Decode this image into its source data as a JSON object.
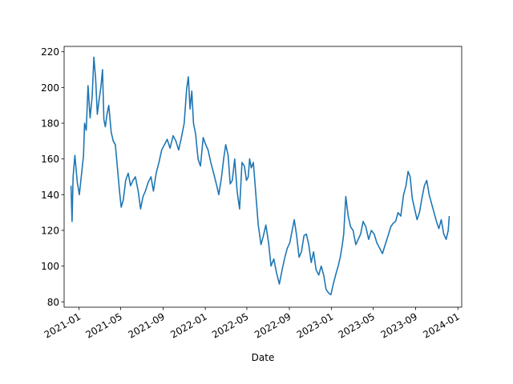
{
  "chart_data": {
    "type": "line",
    "title": "",
    "xlabel": "Date",
    "ylabel": "",
    "xlim": [
      "2020-11-19",
      "2024-01-12"
    ],
    "ylim": [
      77,
      223
    ],
    "grid": false,
    "legend": "none",
    "x_ticks": [
      "2021-01",
      "2021-05",
      "2021-09",
      "2022-01",
      "2022-05",
      "2022-09",
      "2023-01",
      "2023-05",
      "2023-09",
      "2024-01"
    ],
    "y_ticks": [
      80,
      100,
      120,
      140,
      160,
      180,
      200,
      220
    ],
    "series": [
      {
        "color": "#1f77b4",
        "x": [
          "2020-12-09",
          "2020-12-12",
          "2020-12-15",
          "2020-12-20",
          "2020-12-27",
          "2021-01-02",
          "2021-01-08",
          "2021-01-14",
          "2021-01-17",
          "2021-01-22",
          "2021-01-27",
          "2021-02-02",
          "2021-02-08",
          "2021-02-13",
          "2021-02-18",
          "2021-02-23",
          "2021-02-28",
          "2021-03-05",
          "2021-03-10",
          "2021-03-14",
          "2021-03-18",
          "2021-03-23",
          "2021-03-28",
          "2021-04-04",
          "2021-04-10",
          "2021-04-16",
          "2021-04-22",
          "2021-04-28",
          "2021-05-03",
          "2021-05-09",
          "2021-05-16",
          "2021-05-23",
          "2021-05-30",
          "2021-06-06",
          "2021-06-13",
          "2021-06-21",
          "2021-06-28",
          "2021-07-05",
          "2021-07-12",
          "2021-07-20",
          "2021-07-28",
          "2021-08-04",
          "2021-08-12",
          "2021-08-20",
          "2021-08-28",
          "2021-09-05",
          "2021-09-13",
          "2021-09-21",
          "2021-09-30",
          "2021-10-08",
          "2021-10-16",
          "2021-10-24",
          "2021-11-01",
          "2021-11-08",
          "2021-11-13",
          "2021-11-18",
          "2021-11-23",
          "2021-11-28",
          "2021-12-04",
          "2021-12-11",
          "2021-12-18",
          "2021-12-26",
          "2022-01-02",
          "2022-01-09",
          "2022-01-17",
          "2022-01-25",
          "2022-02-02",
          "2022-02-09",
          "2022-02-17",
          "2022-02-23",
          "2022-03-01",
          "2022-03-08",
          "2022-03-14",
          "2022-03-20",
          "2022-03-27",
          "2022-04-03",
          "2022-04-10",
          "2022-04-17",
          "2022-04-24",
          "2022-04-30",
          "2022-05-05",
          "2022-05-09",
          "2022-05-14",
          "2022-05-20",
          "2022-05-27",
          "2022-06-03",
          "2022-06-11",
          "2022-06-18",
          "2022-06-25",
          "2022-07-03",
          "2022-07-10",
          "2022-07-18",
          "2022-07-26",
          "2022-08-03",
          "2022-08-11",
          "2022-08-19",
          "2022-08-26",
          "2022-09-02",
          "2022-09-09",
          "2022-09-15",
          "2022-09-22",
          "2022-09-29",
          "2022-10-06",
          "2022-10-13",
          "2022-10-20",
          "2022-10-27",
          "2022-11-03",
          "2022-11-10",
          "2022-11-17",
          "2022-11-25",
          "2022-12-02",
          "2022-12-09",
          "2022-12-16",
          "2022-12-23",
          "2022-12-30",
          "2023-01-06",
          "2023-01-14",
          "2023-01-20",
          "2023-01-26",
          "2023-02-01",
          "2023-02-05",
          "2023-02-11",
          "2023-02-18",
          "2023-02-25",
          "2023-03-04",
          "2023-03-12",
          "2023-03-19",
          "2023-03-26",
          "2023-04-02",
          "2023-04-10",
          "2023-04-18",
          "2023-04-26",
          "2023-05-04",
          "2023-05-12",
          "2023-05-20",
          "2023-05-28",
          "2023-06-05",
          "2023-06-13",
          "2023-06-21",
          "2023-06-28",
          "2023-07-05",
          "2023-07-12",
          "2023-07-20",
          "2023-07-28",
          "2023-08-04",
          "2023-08-10",
          "2023-08-16",
          "2023-08-22",
          "2023-08-29",
          "2023-09-05",
          "2023-09-12",
          "2023-09-19",
          "2023-09-26",
          "2023-10-03",
          "2023-10-10",
          "2023-10-17",
          "2023-10-24",
          "2023-10-31",
          "2023-11-07",
          "2023-11-14",
          "2023-11-21",
          "2023-11-28",
          "2023-12-04",
          "2023-12-07"
        ],
        "values": [
          145,
          125,
          150,
          162,
          147,
          140,
          151,
          162,
          180,
          176,
          201,
          183,
          195,
          217,
          205,
          185,
          193,
          200,
          210,
          182,
          178,
          185,
          190,
          175,
          170,
          168,
          155,
          142,
          133,
          137,
          148,
          152,
          145,
          148,
          150,
          142,
          132,
          139,
          142,
          147,
          150,
          142,
          152,
          158,
          165,
          168,
          171,
          166,
          173,
          170,
          165,
          172,
          180,
          199,
          206,
          188,
          198,
          180,
          174,
          160,
          156,
          172,
          168,
          165,
          158,
          152,
          146,
          140,
          150,
          160,
          168,
          162,
          146,
          148,
          160,
          142,
          132,
          158,
          156,
          148,
          150,
          160,
          155,
          158,
          140,
          123,
          112,
          117,
          123,
          113,
          100,
          104,
          96,
          90,
          98,
          105,
          110,
          113,
          120,
          126,
          117,
          105,
          108,
          117,
          118,
          112,
          102,
          108,
          98,
          95,
          100,
          95,
          87,
          85,
          84,
          90,
          96,
          100,
          105,
          112,
          118,
          139,
          128,
          122,
          120,
          112,
          115,
          118,
          125,
          122,
          115,
          120,
          118,
          113,
          110,
          107,
          112,
          117,
          122,
          124,
          125,
          130,
          128,
          140,
          145,
          153,
          150,
          138,
          132,
          126,
          130,
          138,
          145,
          148,
          140,
          135,
          130,
          125,
          121,
          126,
          118,
          115,
          120,
          128
        ]
      }
    ]
  }
}
